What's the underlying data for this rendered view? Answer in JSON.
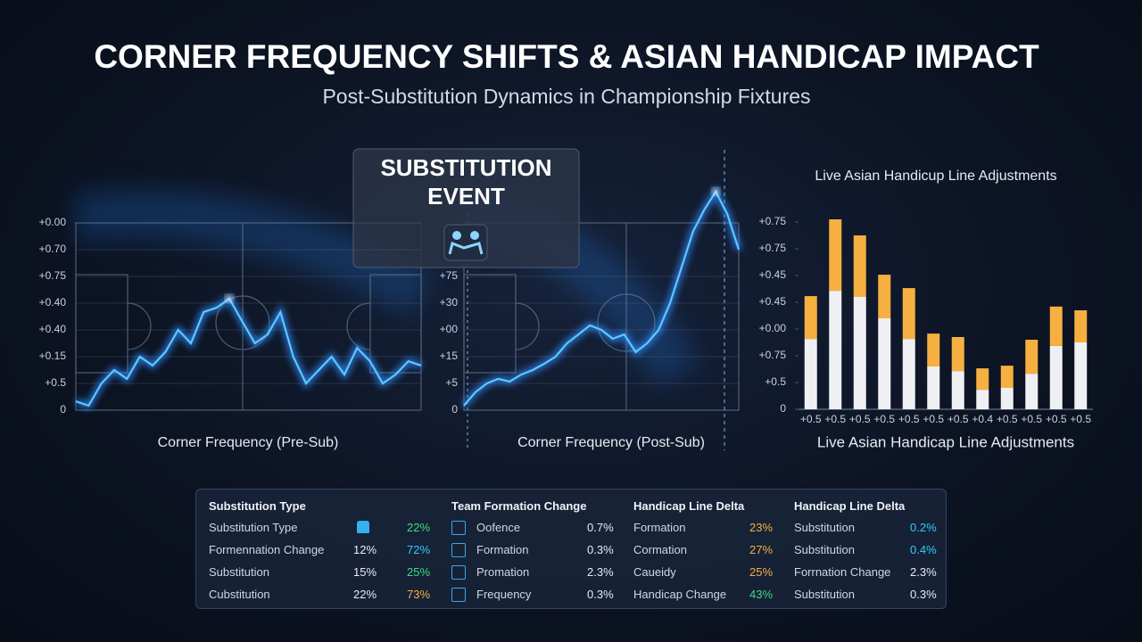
{
  "title": "CORNER FREQUENCY SHIFTS & ASIAN HANDICAP IMPACT",
  "subtitle": "Post-Substitution Dynamics in Championship Fixtures",
  "callout": "SUBSTITUTION EVENT",
  "chart_data": [
    {
      "type": "line",
      "caption": "Corner Frequency (Pre-Sub)",
      "color": "#5cc8ff",
      "x": [
        0,
        1,
        2,
        3,
        4,
        5,
        6,
        7,
        8,
        9,
        10,
        11,
        12,
        13,
        14,
        15,
        16,
        17,
        18,
        19,
        20,
        21,
        22,
        23,
        24,
        25,
        26,
        27
      ],
      "values": [
        0.33,
        0.17,
        1.0,
        1.5,
        1.17,
        2.0,
        1.67,
        2.17,
        3.0,
        2.5,
        3.67,
        3.83,
        4.17,
        3.33,
        2.5,
        2.83,
        3.67,
        2.0,
        1.0,
        1.5,
        2.0,
        1.33,
        2.33,
        1.83,
        1.0,
        1.33,
        1.83,
        1.67
      ],
      "xlim": [
        0,
        27
      ],
      "ylim": [
        0,
        7
      ],
      "yticks": [
        0,
        {
          "value": 1,
          "label": "+0.5"
        },
        {
          "value": 2,
          "label": "+0.15"
        },
        {
          "value": 3,
          "label": "+0.40"
        },
        {
          "value": 4,
          "label": "+0.40"
        },
        {
          "value": 5,
          "label": "+0.75"
        },
        {
          "value": 6,
          "label": "+0.70"
        },
        {
          "value": 7,
          "label": "+0.00"
        }
      ]
    },
    {
      "type": "line",
      "caption": "Corner Frequency (Post-Sub)",
      "color": "#5cc8ff",
      "x": [
        0,
        1,
        2,
        3,
        4,
        5,
        6,
        7,
        8,
        9,
        10,
        11,
        12,
        13,
        14,
        15,
        16,
        17,
        18,
        19,
        20,
        21,
        22,
        23,
        24
      ],
      "values": [
        0.17,
        0.67,
        1.0,
        1.17,
        1.07,
        1.33,
        1.5,
        1.73,
        2.0,
        2.5,
        2.83,
        3.17,
        3.0,
        2.67,
        2.83,
        2.17,
        2.5,
        3.0,
        4.0,
        5.33,
        6.67,
        7.5,
        8.17,
        7.33,
        6.0
      ],
      "xlim": [
        0,
        24
      ],
      "ylim": [
        0,
        8.5
      ],
      "yticks": [
        0,
        {
          "value": 1,
          "label": "+5"
        },
        {
          "value": 2,
          "label": "+15"
        },
        {
          "value": 3,
          "label": "+00"
        },
        {
          "value": 4,
          "label": "+30"
        },
        {
          "value": 5,
          "label": "+75"
        }
      ]
    },
    {
      "type": "stacked_bar",
      "title": "Live Asian Handicup Line Adjustments",
      "caption": "Live Asian Handicap Line Adjustments",
      "categories": [
        "+0.5",
        "+0.5",
        "+0.5",
        "+0.5",
        "+0.5",
        "+0.5",
        "+0.5",
        "+0.4",
        "+0.5",
        "+0.5",
        "+0.5",
        "+0.5"
      ],
      "series": [
        {
          "color": "#eef0f4",
          "values": [
            2.63,
            4.43,
            4.2,
            3.4,
            2.63,
            1.6,
            1.43,
            0.73,
            0.8,
            1.33,
            2.37,
            2.5
          ]
        },
        {
          "color": "#f5b041",
          "values": [
            1.6,
            2.67,
            2.3,
            1.63,
            1.9,
            1.23,
            1.27,
            0.8,
            0.83,
            1.27,
            1.47,
            1.2
          ]
        }
      ],
      "ylim": [
        0,
        7.3
      ],
      "yticks": [
        0,
        {
          "value": 1,
          "label": "+0.5"
        },
        {
          "value": 2,
          "label": "+0.75"
        },
        {
          "value": 3,
          "label": "+0.00"
        },
        {
          "value": 4,
          "label": "+0.45"
        },
        {
          "value": 5,
          "label": "+0.45"
        },
        {
          "value": 6,
          "label": "+0.75"
        },
        {
          "value": 7,
          "label": "+0.75"
        }
      ]
    }
  ],
  "table": {
    "columns": [
      {
        "header": "Substitution Type",
        "rows": [
          [
            "Substitution Type",
            "22%"
          ],
          [
            "Formennation Change",
            "12%",
            "72%"
          ],
          [
            "Substitution",
            "15%",
            "25%"
          ],
          [
            "Cubstitution",
            "22%",
            "73%"
          ]
        ]
      },
      {
        "header": "Team Formation Change",
        "rows": [
          [
            "Oofence",
            "0.7%"
          ],
          [
            "Formation",
            "0.3%"
          ],
          [
            "Promation",
            "2.3%"
          ],
          [
            "Frequency",
            "0.3%"
          ]
        ]
      },
      {
        "header": "Handicap Line Delta",
        "rows": [
          [
            "Formation",
            "23%"
          ],
          [
            "Cormation",
            "27%"
          ],
          [
            "Caueidy",
            "25%"
          ],
          [
            "Handicap Change",
            "43%"
          ]
        ]
      },
      {
        "header": "Handicap Line Delta",
        "rows": [
          [
            "Substitution",
            "0.2%"
          ],
          [
            "Substitution",
            "0.4%"
          ],
          [
            "Forrnation Change",
            "2.3%"
          ],
          [
            "Substitution",
            "0.3%"
          ]
        ]
      }
    ]
  }
}
